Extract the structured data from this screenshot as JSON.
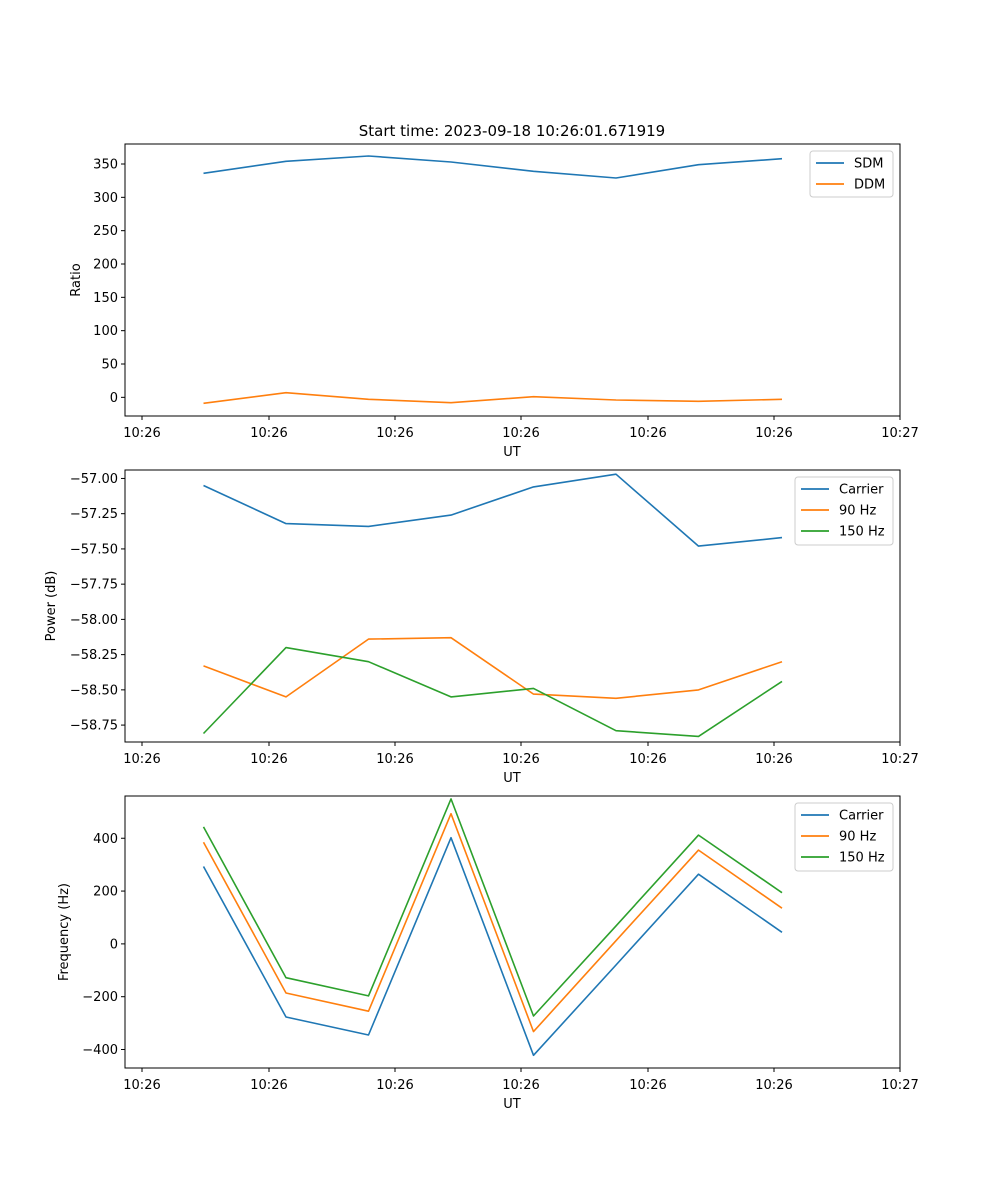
{
  "title": "Start time: 2023-09-18 10:26:01.671919",
  "chart_data": [
    {
      "type": "line",
      "ylabel": "Ratio",
      "xlabel": "UT",
      "xticklabels": [
        "10:26",
        "10:26",
        "10:26",
        "10:26",
        "10:26",
        "10:26",
        "10:26",
        "10:27"
      ],
      "yticks": [
        0,
        50,
        100,
        150,
        200,
        250,
        300,
        350
      ],
      "yticklabels": [
        "0",
        "50",
        "100",
        "150",
        "200",
        "250",
        "300",
        "350"
      ],
      "ylim": [
        -28,
        380
      ],
      "legend": "top-right",
      "series": [
        {
          "name": "SDM",
          "color": "#1f77b4",
          "values": [
            336,
            354,
            362,
            353,
            339,
            329,
            349,
            358
          ]
        },
        {
          "name": "DDM",
          "color": "#ff7f0e",
          "values": [
            -9,
            7,
            -3,
            -8,
            1,
            -4,
            -6,
            -3
          ]
        }
      ]
    },
    {
      "type": "line",
      "ylabel": "Power (dB)",
      "xlabel": "UT",
      "xticklabels": [
        "10:26",
        "10:26",
        "10:26",
        "10:26",
        "10:26",
        "10:26",
        "10:26",
        "10:27"
      ],
      "yticks": [
        -57.0,
        -57.25,
        -57.5,
        -57.75,
        -58.0,
        -58.25,
        -58.5,
        -58.75
      ],
      "yticklabels": [
        "−57.00",
        "−57.25",
        "−57.50",
        "−57.75",
        "−58.00",
        "−58.25",
        "−58.50",
        "−58.75"
      ],
      "ylim": [
        -58.87,
        -56.94
      ],
      "legend": "top-right",
      "series": [
        {
          "name": "Carrier",
          "color": "#1f77b4",
          "values": [
            -57.05,
            -57.32,
            -57.34,
            -57.26,
            -57.06,
            -56.97,
            -57.48,
            -57.42
          ]
        },
        {
          "name": "90 Hz",
          "color": "#ff7f0e",
          "values": [
            -58.33,
            -58.55,
            -58.14,
            -58.13,
            -58.53,
            -58.56,
            -58.5,
            -58.3
          ]
        },
        {
          "name": "150 Hz",
          "color": "#2ca02c",
          "values": [
            -58.81,
            -58.2,
            -58.3,
            -58.55,
            -58.49,
            -58.79,
            -58.83,
            -58.44
          ]
        }
      ]
    },
    {
      "type": "line",
      "ylabel": "Frequency (Hz)",
      "xlabel": "UT",
      "xticklabels": [
        "10:26",
        "10:26",
        "10:26",
        "10:26",
        "10:26",
        "10:26",
        "10:26",
        "10:27"
      ],
      "yticks": [
        400,
        200,
        0,
        -200,
        -400
      ],
      "yticklabels": [
        "400",
        "200",
        "0",
        "−200",
        "−400"
      ],
      "ylim": [
        -470,
        560
      ],
      "legend": "top-right",
      "series": [
        {
          "name": "Carrier",
          "color": "#1f77b4",
          "values": [
            293,
            -277,
            -345,
            402,
            -422,
            -80,
            264,
            44
          ]
        },
        {
          "name": "90 Hz",
          "color": "#ff7f0e",
          "values": [
            385,
            -186,
            -255,
            493,
            -332,
            12,
            355,
            135
          ]
        },
        {
          "name": "150 Hz",
          "color": "#2ca02c",
          "values": [
            443,
            -128,
            -197,
            549,
            -273,
            68,
            412,
            194
          ]
        }
      ]
    }
  ]
}
